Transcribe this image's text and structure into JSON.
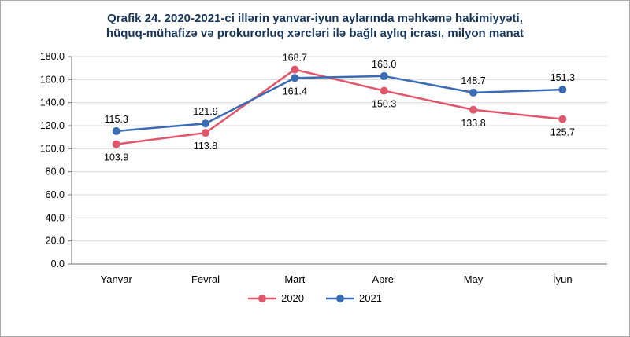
{
  "chart_data": {
    "type": "line",
    "title": "Qrafik 24. 2020-2021-ci illərin yanvar-iyun aylarında məhkəmə hakimiyyəti, hüquq-mühafizə və prokurorluq xərcləri ilə bağlı aylıq icrası, milyon manat",
    "title_lines": [
      "Qrafik 24. 2020-2021-ci illərin yanvar-iyun aylarında məhkəmə hakimiyyəti,",
      "hüquq-mühafizə və prokurorluq xərcləri ilə bağlı aylıq icrası, milyon manat"
    ],
    "categories": [
      "Yanvar",
      "Fevral",
      "Mart",
      "Aprel",
      "May",
      "İyun"
    ],
    "series": [
      {
        "name": "2020",
        "color": "#e0566b",
        "values": [
          103.9,
          113.8,
          168.7,
          150.3,
          133.8,
          125.7
        ]
      },
      {
        "name": "2021",
        "color": "#3a6bb5",
        "values": [
          115.3,
          121.9,
          161.4,
          163.0,
          148.7,
          151.3
        ]
      }
    ],
    "ylim": [
      0,
      180
    ],
    "ytick_step": 20,
    "ytick_decimals": 1,
    "grid": true,
    "legend_position": "bottom",
    "colors": {
      "gridline": "#d9d9d9",
      "axis": "#6f6f6f",
      "label_text": "#000000",
      "title_text": "#17365d"
    }
  }
}
